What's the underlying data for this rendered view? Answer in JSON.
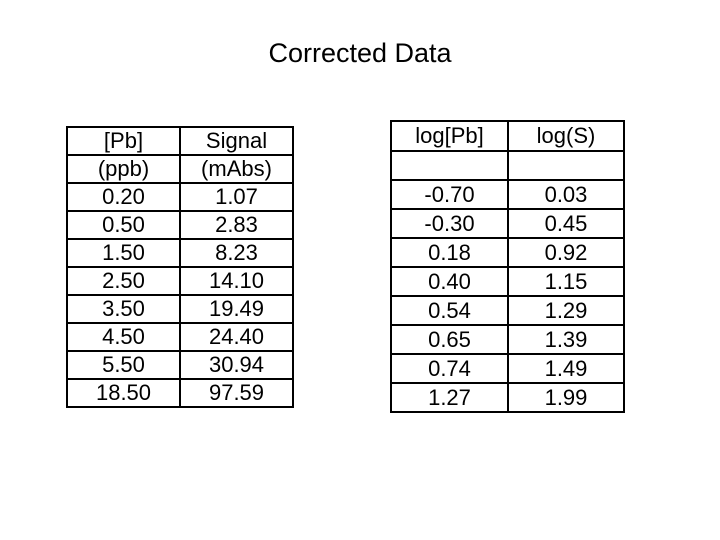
{
  "title": "Corrected Data",
  "left_table": {
    "header_row1": [
      "[Pb]",
      "Signal"
    ],
    "header_row2": [
      "(ppb)",
      "(mAbs)"
    ],
    "rows": [
      [
        "0.20",
        "1.07"
      ],
      [
        "0.50",
        "2.83"
      ],
      [
        "1.50",
        "8.23"
      ],
      [
        "2.50",
        "14.10"
      ],
      [
        "3.50",
        "19.49"
      ],
      [
        "4.50",
        "24.40"
      ],
      [
        "5.50",
        "30.94"
      ],
      [
        "18.50",
        "97.59"
      ]
    ]
  },
  "right_table": {
    "header_row1": [
      "log[Pb]",
      "log(S)"
    ],
    "header_row2": [
      "",
      ""
    ],
    "rows": [
      [
        "-0.70",
        "0.03"
      ],
      [
        "-0.30",
        "0.45"
      ],
      [
        "0.18",
        "0.92"
      ],
      [
        "0.40",
        "1.15"
      ],
      [
        "0.54",
        "1.29"
      ],
      [
        "0.65",
        "1.39"
      ],
      [
        "0.74",
        "1.49"
      ],
      [
        "1.27",
        "1.99"
      ]
    ]
  }
}
